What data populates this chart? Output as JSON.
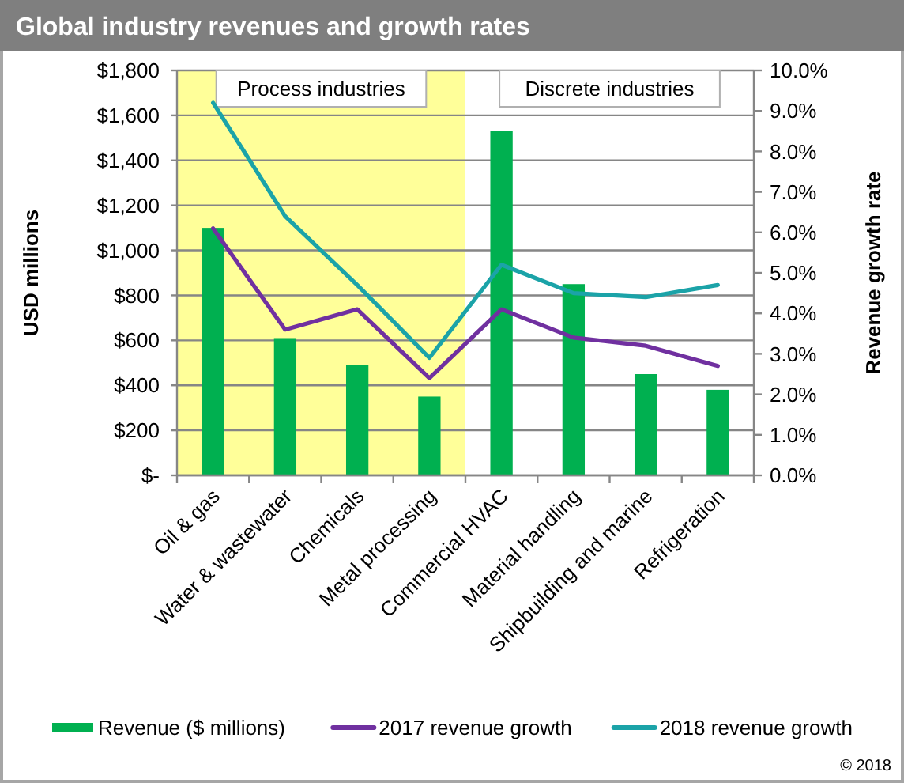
{
  "chart_data": {
    "type": "bar",
    "title": "Global industry revenues and growth rates",
    "ylabel": "USD millions",
    "y2label": "Revenue growth rate",
    "categories": [
      "Oil & gas",
      "Water & wastewater",
      "Chemicals",
      "Metal processing",
      "Commercial HVAC",
      "Material handling",
      "Shipbuilding and marine",
      "Refrigeration"
    ],
    "series": [
      {
        "name": "Revenue ($ millions)",
        "color": "#00b050",
        "values": [
          1100,
          610,
          490,
          350,
          1530,
          850,
          450,
          380
        ]
      },
      {
        "name": "2017 revenue growth",
        "type": "line",
        "axis": "y2",
        "color": "#7030a0",
        "values": [
          6.1,
          3.6,
          4.1,
          2.4,
          4.1,
          3.4,
          3.2,
          2.7
        ]
      },
      {
        "name": "2018 revenue growth",
        "type": "line",
        "axis": "y2",
        "color": "#1ba3a8",
        "values": [
          9.2,
          6.4,
          4.7,
          2.9,
          5.2,
          4.5,
          4.4,
          4.7
        ]
      }
    ],
    "ylim": [
      0,
      1800
    ],
    "yticks": [
      {
        "value": 0,
        "label": "$-"
      },
      {
        "value": 200,
        "label": "$200"
      },
      {
        "value": 400,
        "label": "$400"
      },
      {
        "value": 600,
        "label": "$600"
      },
      {
        "value": 800,
        "label": "$800"
      },
      {
        "value": 1000,
        "label": "$1,000"
      },
      {
        "value": 1200,
        "label": "$1,200"
      },
      {
        "value": 1400,
        "label": "$1,400"
      },
      {
        "value": 1600,
        "label": "$1,600"
      },
      {
        "value": 1800,
        "label": "$1,800"
      }
    ],
    "y2lim": [
      0,
      10
    ],
    "y2ticks": [
      {
        "value": 0,
        "label": "0.0%"
      },
      {
        "value": 1,
        "label": "1.0%"
      },
      {
        "value": 2,
        "label": "2.0%"
      },
      {
        "value": 3,
        "label": "3.0%"
      },
      {
        "value": 4,
        "label": "4.0%"
      },
      {
        "value": 5,
        "label": "5.0%"
      },
      {
        "value": 6,
        "label": "6.0%"
      },
      {
        "value": 7,
        "label": "7.0%"
      },
      {
        "value": 8,
        "label": "8.0%"
      },
      {
        "value": 9,
        "label": "9.0%"
      },
      {
        "value": 10,
        "label": "10.0%"
      }
    ],
    "bands": [
      {
        "axis": "x",
        "from": "Oil & gas",
        "to": "Metal processing",
        "label": "Process industries",
        "color": "#ffff99"
      },
      {
        "axis": "x",
        "from": "Commercial HVAC",
        "to": "Refrigeration",
        "label": "Discrete industries"
      }
    ],
    "grid": "y",
    "legend": "bottom",
    "annotations": [
      "© 2018"
    ]
  }
}
